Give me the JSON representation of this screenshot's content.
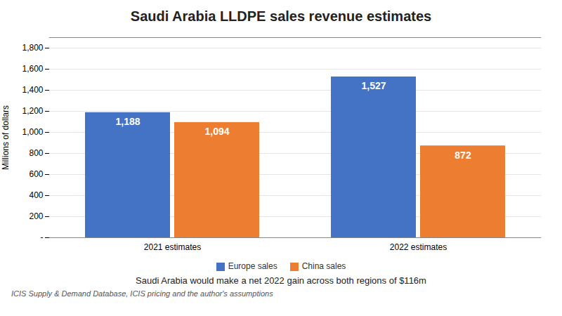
{
  "chart_data": {
    "type": "bar",
    "title": "Saudi Arabia LLDPE sales revenue estimates",
    "subtitle": "Saudi Arabia would make a net 2022 gain across both regions of $116m",
    "footnote": "ICIS Supply  & Demand Database, ICIS pricing and the author's assumptions",
    "ylabel": "Millions of dollars",
    "categories": [
      "2021 estimates",
      "2022 estimates"
    ],
    "series": [
      {
        "name": "Europe sales",
        "color": "#4472C4",
        "values": [
          1188,
          1527
        ],
        "value_labels": [
          "1,188",
          "1,527"
        ]
      },
      {
        "name": "China sales",
        "color": "#ED7D31",
        "values": [
          1094,
          872
        ],
        "value_labels": [
          "1,094",
          "872"
        ]
      }
    ],
    "ylim": [
      0,
      1900
    ],
    "yticks": [
      {
        "value": 0,
        "label": "-"
      },
      200,
      400,
      600,
      800,
      {
        "value": 1000,
        "label": "1,000"
      },
      {
        "value": 1200,
        "label": "1,200"
      },
      {
        "value": 1400,
        "label": "1,400"
      },
      {
        "value": 1600,
        "label": "1,600"
      },
      {
        "value": 1800,
        "label": "1,800"
      }
    ],
    "grid": true,
    "legend": "bottom",
    "data_labels": true
  }
}
